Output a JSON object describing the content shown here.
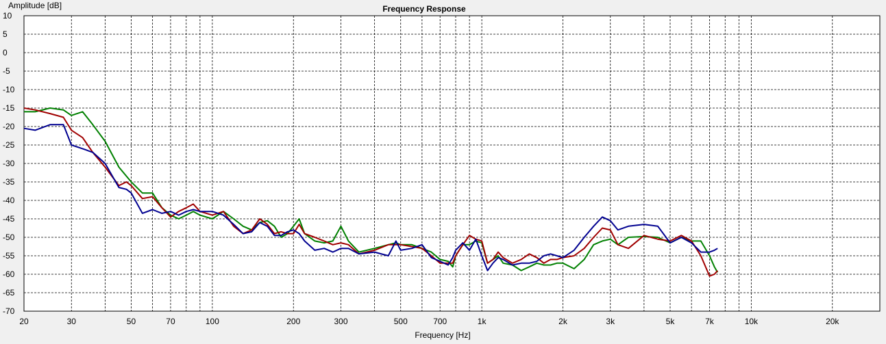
{
  "chart_data": {
    "type": "line",
    "title": "Frequency Response",
    "xlabel": "Frequency [Hz]",
    "ylabel": "Amplitude [dB]",
    "x_scale": "log",
    "xlim": [
      20,
      30000
    ],
    "ylim": [
      -70,
      10
    ],
    "grid": true,
    "y_ticks": [
      10,
      5,
      0,
      -5,
      -10,
      -15,
      -20,
      -25,
      -30,
      -35,
      -40,
      -45,
      -50,
      -55,
      -60,
      -65,
      -70
    ],
    "x_tick_labels": [
      {
        "f": 20,
        "label": "20"
      },
      {
        "f": 30,
        "label": "30"
      },
      {
        "f": 50,
        "label": "50"
      },
      {
        "f": 70,
        "label": "70"
      },
      {
        "f": 100,
        "label": "100"
      },
      {
        "f": 200,
        "label": "200"
      },
      {
        "f": 300,
        "label": "300"
      },
      {
        "f": 500,
        "label": "500"
      },
      {
        "f": 700,
        "label": "700"
      },
      {
        "f": 1000,
        "label": "1k"
      },
      {
        "f": 2000,
        "label": "2k"
      },
      {
        "f": 3000,
        "label": "3k"
      },
      {
        "f": 5000,
        "label": "5k"
      },
      {
        "f": 7000,
        "label": "7k"
      },
      {
        "f": 10000,
        "label": "10k"
      },
      {
        "f": 20000,
        "label": "20k"
      }
    ],
    "x_grid": [
      20,
      30,
      40,
      50,
      60,
      70,
      80,
      90,
      100,
      200,
      300,
      400,
      500,
      600,
      700,
      800,
      900,
      1000,
      2000,
      3000,
      4000,
      5000,
      6000,
      7000,
      8000,
      9000,
      10000,
      20000,
      30000
    ],
    "series": [
      {
        "color": "#008000",
        "points": [
          [
            20,
            -16
          ],
          [
            22,
            -16
          ],
          [
            25,
            -15
          ],
          [
            28,
            -15.5
          ],
          [
            30,
            -17
          ],
          [
            33,
            -16
          ],
          [
            36,
            -19.5
          ],
          [
            40,
            -24
          ],
          [
            45,
            -31
          ],
          [
            50,
            -35
          ],
          [
            55,
            -38
          ],
          [
            60,
            -38
          ],
          [
            65,
            -42
          ],
          [
            70,
            -44
          ],
          [
            75,
            -45
          ],
          [
            80,
            -44
          ],
          [
            85,
            -43
          ],
          [
            90,
            -44
          ],
          [
            100,
            -45
          ],
          [
            110,
            -43
          ],
          [
            120,
            -45
          ],
          [
            130,
            -47
          ],
          [
            140,
            -48
          ],
          [
            150,
            -46
          ],
          [
            160,
            -45.5
          ],
          [
            170,
            -47
          ],
          [
            180,
            -50
          ],
          [
            190,
            -49
          ],
          [
            200,
            -47
          ],
          [
            210,
            -45
          ],
          [
            220,
            -49
          ],
          [
            240,
            -51
          ],
          [
            260,
            -51.5
          ],
          [
            280,
            -51
          ],
          [
            300,
            -47
          ],
          [
            320,
            -51
          ],
          [
            350,
            -54
          ],
          [
            400,
            -53
          ],
          [
            450,
            -52
          ],
          [
            480,
            -51.5
          ],
          [
            500,
            -52
          ],
          [
            550,
            -52
          ],
          [
            600,
            -53
          ],
          [
            650,
            -54
          ],
          [
            700,
            -56
          ],
          [
            750,
            -56.5
          ],
          [
            780,
            -58
          ],
          [
            800,
            -55
          ],
          [
            850,
            -52
          ],
          [
            900,
            -52
          ],
          [
            950,
            -51
          ],
          [
            1000,
            -51.5
          ],
          [
            1050,
            -57
          ],
          [
            1100,
            -56
          ],
          [
            1150,
            -55
          ],
          [
            1200,
            -57
          ],
          [
            1300,
            -57.5
          ],
          [
            1400,
            -59
          ],
          [
            1500,
            -58
          ],
          [
            1600,
            -57
          ],
          [
            1700,
            -57.5
          ],
          [
            1800,
            -57.5
          ],
          [
            1900,
            -57
          ],
          [
            2000,
            -57
          ],
          [
            2200,
            -58.5
          ],
          [
            2400,
            -56
          ],
          [
            2600,
            -52
          ],
          [
            2800,
            -51
          ],
          [
            3000,
            -50.5
          ],
          [
            3200,
            -52
          ],
          [
            3500,
            -50
          ],
          [
            4000,
            -49.8
          ],
          [
            4500,
            -50
          ],
          [
            5000,
            -51.5
          ],
          [
            5500,
            -50
          ],
          [
            6000,
            -51
          ],
          [
            6500,
            -51
          ],
          [
            7000,
            -55
          ],
          [
            7300,
            -58
          ],
          [
            7500,
            -59.5
          ]
        ]
      },
      {
        "color": "#a00000",
        "points": [
          [
            20,
            -15
          ],
          [
            22,
            -15.5
          ],
          [
            25,
            -16.5
          ],
          [
            28,
            -17.5
          ],
          [
            30,
            -21
          ],
          [
            33,
            -23
          ],
          [
            36,
            -27
          ],
          [
            40,
            -31
          ],
          [
            45,
            -36
          ],
          [
            48,
            -35
          ],
          [
            50,
            -36
          ],
          [
            55,
            -39.5
          ],
          [
            60,
            -39
          ],
          [
            65,
            -42
          ],
          [
            70,
            -44.5
          ],
          [
            75,
            -43
          ],
          [
            80,
            -42
          ],
          [
            85,
            -41
          ],
          [
            90,
            -43
          ],
          [
            100,
            -44
          ],
          [
            110,
            -43
          ],
          [
            120,
            -47
          ],
          [
            130,
            -49
          ],
          [
            140,
            -48
          ],
          [
            150,
            -45
          ],
          [
            160,
            -46.5
          ],
          [
            170,
            -49
          ],
          [
            180,
            -48.5
          ],
          [
            190,
            -49
          ],
          [
            200,
            -49
          ],
          [
            210,
            -46.5
          ],
          [
            220,
            -49
          ],
          [
            240,
            -50
          ],
          [
            260,
            -51
          ],
          [
            280,
            -52
          ],
          [
            300,
            -51.5
          ],
          [
            320,
            -52
          ],
          [
            350,
            -54.5
          ],
          [
            400,
            -53.5
          ],
          [
            450,
            -52
          ],
          [
            480,
            -52
          ],
          [
            500,
            -52
          ],
          [
            550,
            -52.5
          ],
          [
            600,
            -53
          ],
          [
            650,
            -55
          ],
          [
            700,
            -57
          ],
          [
            750,
            -57
          ],
          [
            780,
            -57
          ],
          [
            800,
            -55
          ],
          [
            850,
            -52
          ],
          [
            900,
            -49.5
          ],
          [
            950,
            -50.5
          ],
          [
            1000,
            -51
          ],
          [
            1050,
            -57
          ],
          [
            1100,
            -56
          ],
          [
            1150,
            -54
          ],
          [
            1200,
            -55.5
          ],
          [
            1300,
            -57
          ],
          [
            1400,
            -56
          ],
          [
            1500,
            -54.5
          ],
          [
            1600,
            -55.5
          ],
          [
            1700,
            -57
          ],
          [
            1800,
            -56
          ],
          [
            1900,
            -56
          ],
          [
            2000,
            -55.5
          ],
          [
            2200,
            -55
          ],
          [
            2400,
            -53
          ],
          [
            2600,
            -50
          ],
          [
            2800,
            -47.5
          ],
          [
            3000,
            -48
          ],
          [
            3200,
            -52
          ],
          [
            3500,
            -53
          ],
          [
            4000,
            -49.5
          ],
          [
            4500,
            -50.5
          ],
          [
            5000,
            -51
          ],
          [
            5500,
            -49.5
          ],
          [
            6000,
            -51
          ],
          [
            6500,
            -55
          ],
          [
            7000,
            -60.5
          ],
          [
            7300,
            -60
          ],
          [
            7500,
            -59
          ]
        ]
      },
      {
        "color": "#000090",
        "points": [
          [
            20,
            -20.5
          ],
          [
            22,
            -21
          ],
          [
            25,
            -19.5
          ],
          [
            28,
            -19.5
          ],
          [
            30,
            -25
          ],
          [
            33,
            -26
          ],
          [
            36,
            -27
          ],
          [
            40,
            -30
          ],
          [
            45,
            -36.5
          ],
          [
            48,
            -37
          ],
          [
            50,
            -38
          ],
          [
            55,
            -43.5
          ],
          [
            60,
            -42.5
          ],
          [
            65,
            -43.5
          ],
          [
            70,
            -43
          ],
          [
            75,
            -44
          ],
          [
            80,
            -43
          ],
          [
            85,
            -42.5
          ],
          [
            90,
            -43
          ],
          [
            100,
            -43
          ],
          [
            110,
            -44
          ],
          [
            120,
            -46.5
          ],
          [
            130,
            -49
          ],
          [
            140,
            -48.5
          ],
          [
            150,
            -46
          ],
          [
            160,
            -47
          ],
          [
            170,
            -49.5
          ],
          [
            180,
            -49.5
          ],
          [
            190,
            -48.5
          ],
          [
            200,
            -48
          ],
          [
            210,
            -49
          ],
          [
            220,
            -51
          ],
          [
            240,
            -53.5
          ],
          [
            260,
            -53
          ],
          [
            280,
            -54
          ],
          [
            300,
            -53
          ],
          [
            320,
            -53
          ],
          [
            350,
            -54.5
          ],
          [
            400,
            -54
          ],
          [
            450,
            -55
          ],
          [
            480,
            -51
          ],
          [
            500,
            -53.5
          ],
          [
            550,
            -53
          ],
          [
            600,
            -52
          ],
          [
            650,
            -55.5
          ],
          [
            700,
            -56.5
          ],
          [
            750,
            -57.5
          ],
          [
            780,
            -55.5
          ],
          [
            800,
            -53.5
          ],
          [
            850,
            -51.5
          ],
          [
            900,
            -53.5
          ],
          [
            950,
            -50.5
          ],
          [
            1000,
            -55
          ],
          [
            1050,
            -59
          ],
          [
            1100,
            -57
          ],
          [
            1150,
            -55.5
          ],
          [
            1200,
            -56
          ],
          [
            1300,
            -57.5
          ],
          [
            1400,
            -57
          ],
          [
            1500,
            -57
          ],
          [
            1600,
            -56.5
          ],
          [
            1700,
            -55
          ],
          [
            1800,
            -54.5
          ],
          [
            1900,
            -55
          ],
          [
            2000,
            -55.5
          ],
          [
            2200,
            -53.5
          ],
          [
            2400,
            -50
          ],
          [
            2600,
            -47
          ],
          [
            2800,
            -44.5
          ],
          [
            3000,
            -45.5
          ],
          [
            3200,
            -48
          ],
          [
            3500,
            -47
          ],
          [
            4000,
            -46.5
          ],
          [
            4500,
            -47
          ],
          [
            5000,
            -51.5
          ],
          [
            5500,
            -50
          ],
          [
            6000,
            -51.5
          ],
          [
            6500,
            -54
          ],
          [
            7000,
            -54
          ],
          [
            7300,
            -53.5
          ],
          [
            7500,
            -53
          ]
        ]
      }
    ]
  }
}
